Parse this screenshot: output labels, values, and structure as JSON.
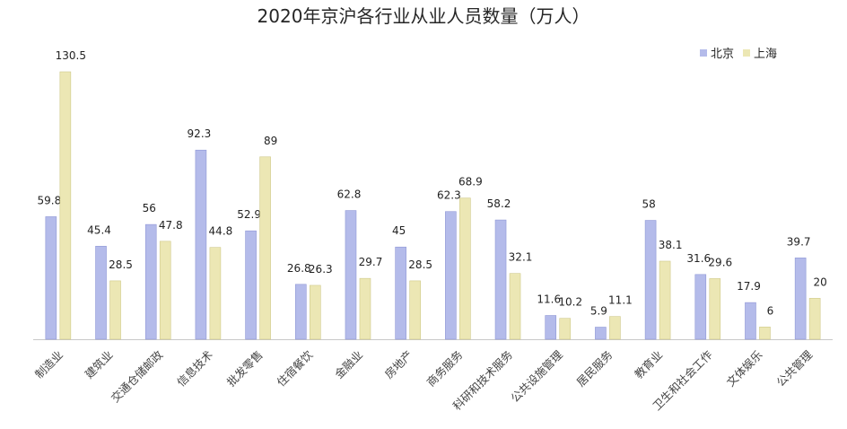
{
  "chart_data": {
    "type": "bar",
    "title": "2020年京沪各行业从业人员数量（万人）",
    "categories": [
      "制造业",
      "建筑业",
      "交通仓储邮政",
      "信息技术",
      "批发零售",
      "住宿餐饮",
      "金融业",
      "房地产",
      "商务服务",
      "科研和技术服务",
      "公共设施管理",
      "居民服务",
      "教育业",
      "卫生和社会工作",
      "文体娱乐",
      "公共管理"
    ],
    "series": [
      {
        "name": "北京",
        "color": "#b4bbea",
        "stroke": "#8f97d6",
        "values": [
          59.8,
          45.4,
          56,
          92.3,
          52.9,
          26.8,
          62.8,
          45,
          62.3,
          58.2,
          11.6,
          5.9,
          58,
          31.6,
          17.9,
          39.7
        ]
      },
      {
        "name": "上海",
        "color": "#ece7b4",
        "stroke": "#cfc98a",
        "values": [
          130.5,
          28.5,
          47.8,
          44.8,
          89,
          26.3,
          29.7,
          28.5,
          68.9,
          32.1,
          10.2,
          11.1,
          38.1,
          29.6,
          6,
          20
        ]
      }
    ],
    "xlabel": "",
    "ylabel": "",
    "ylim": [
      0,
      130.5
    ],
    "grid": false,
    "legend_position": "top-right"
  }
}
